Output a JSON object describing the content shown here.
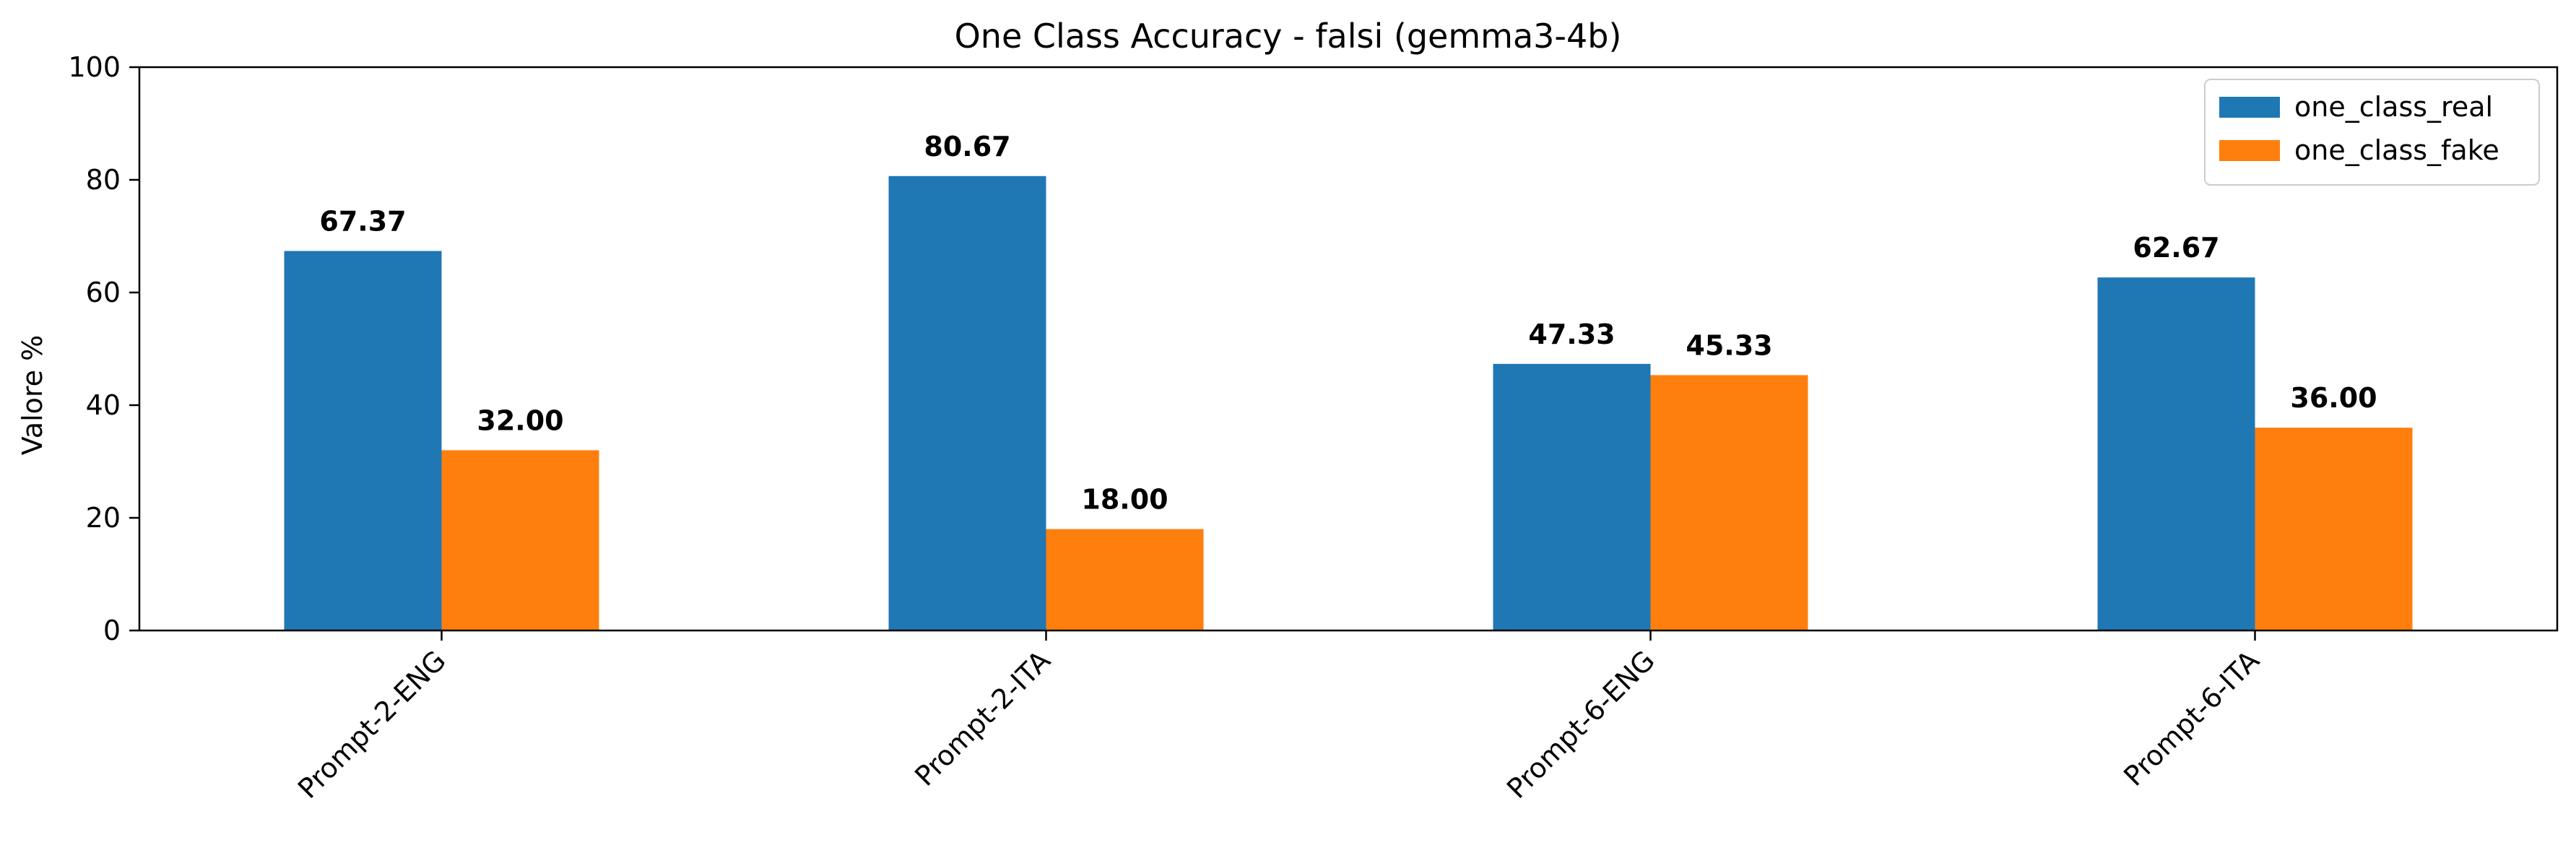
{
  "chart_data": {
    "type": "bar",
    "title": "One Class Accuracy - falsi (gemma3-4b)",
    "xlabel": "",
    "ylabel": "Valore %",
    "ylim": [
      0,
      100
    ],
    "yticks": [
      0,
      20,
      40,
      60,
      80,
      100
    ],
    "categories": [
      "Prompt-2-ENG",
      "Prompt-2-ITA",
      "Prompt-6-ENG",
      "Prompt-6-ITA"
    ],
    "series": [
      {
        "name": "one_class_real",
        "color": "#1f77b4",
        "values": [
          67.37,
          80.67,
          47.33,
          62.67
        ],
        "labels": [
          "67.37",
          "80.67",
          "47.33",
          "62.67"
        ]
      },
      {
        "name": "one_class_fake",
        "color": "#ff7f0e",
        "values": [
          32.0,
          18.0,
          45.33,
          36.0
        ],
        "labels": [
          "32.00",
          "18.00",
          "45.33",
          "36.00"
        ]
      }
    ],
    "grid": false,
    "legend_position": "top-right"
  }
}
